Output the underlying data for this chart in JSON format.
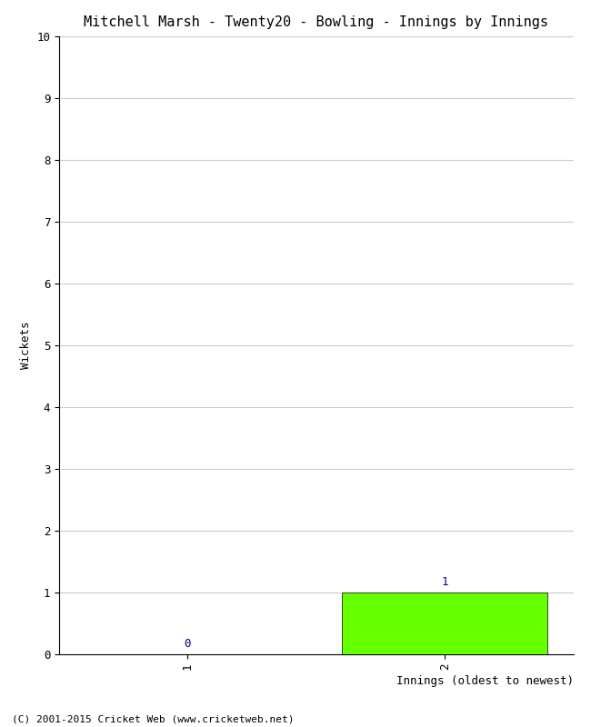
{
  "title": "Mitchell Marsh - Twenty20 - Bowling - Innings by Innings",
  "xlabel": "Innings (oldest to newest)",
  "ylabel": "Wickets",
  "categories": [
    1,
    2
  ],
  "values": [
    0,
    1
  ],
  "bar_color": "#66ff00",
  "ylim": [
    0,
    10
  ],
  "yticks": [
    0,
    1,
    2,
    3,
    4,
    5,
    6,
    7,
    8,
    9,
    10
  ],
  "value_labels": [
    "0",
    "1"
  ],
  "value_label_color": "#00008b",
  "background_color": "#ffffff",
  "grid_color": "#cccccc",
  "footer_text": "(C) 2001-2015 Cricket Web (www.cricketweb.net)",
  "title_fontsize": 11,
  "axis_label_fontsize": 9,
  "tick_fontsize": 9,
  "footer_fontsize": 8,
  "bar_width": 0.8
}
